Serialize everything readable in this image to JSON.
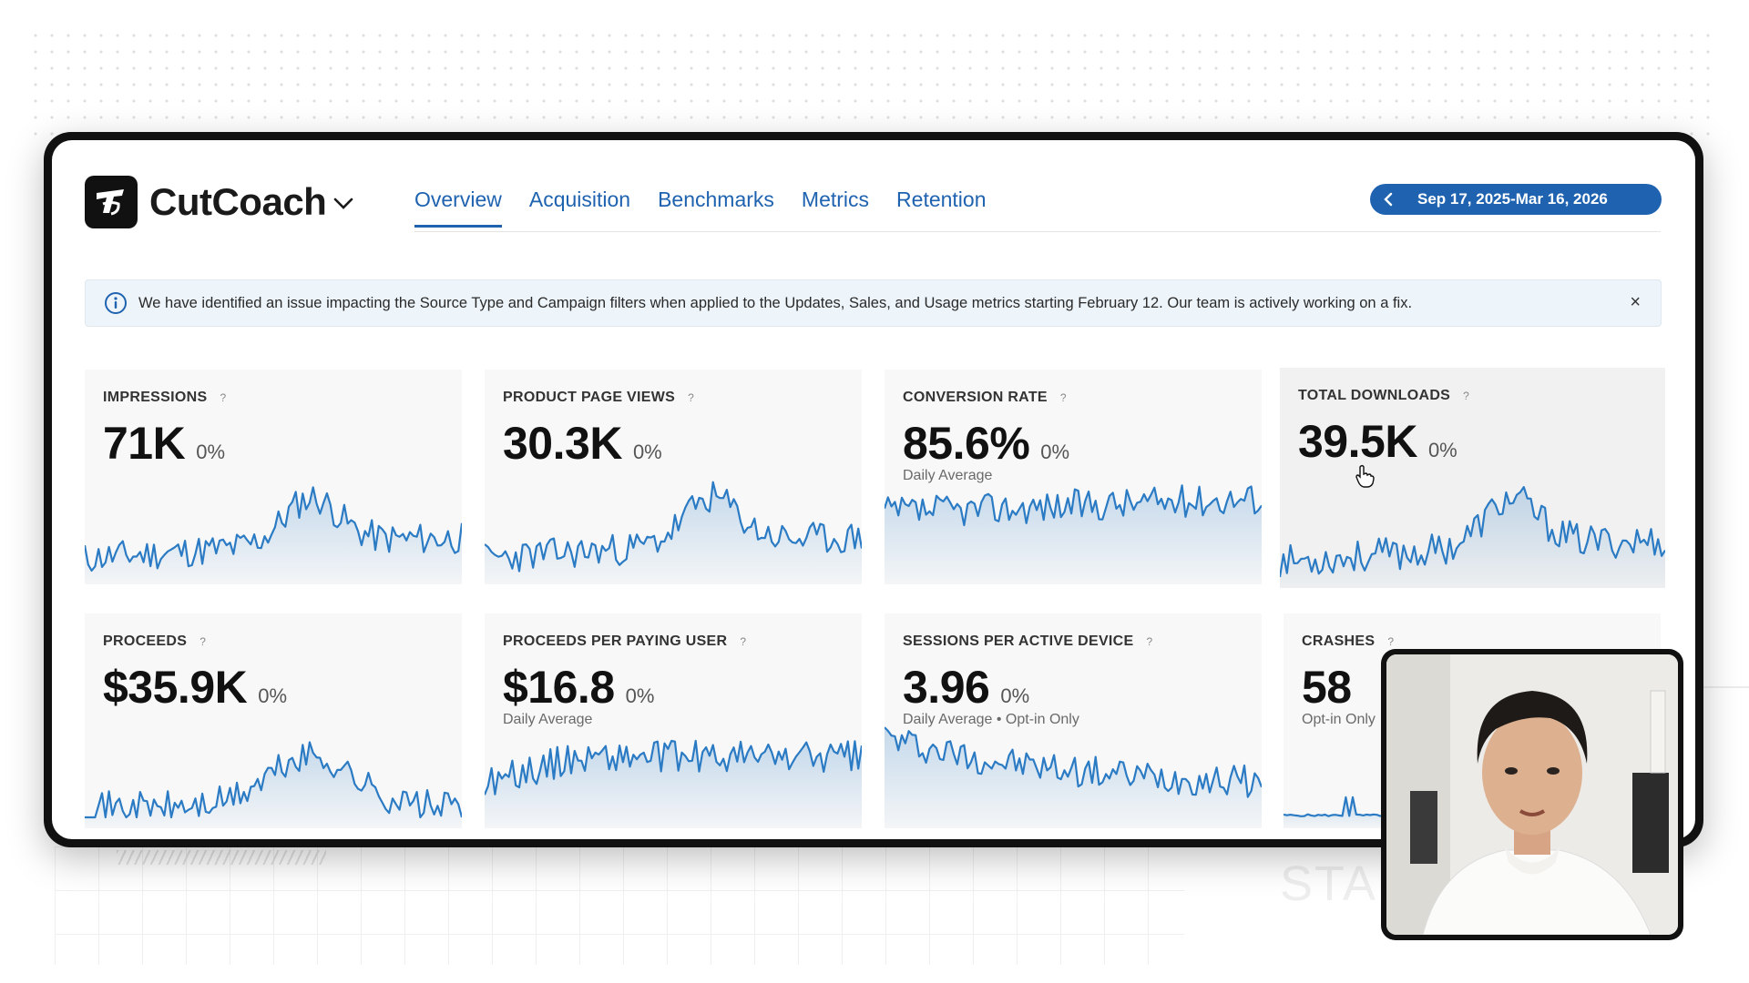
{
  "app": {
    "name": "CutCoach"
  },
  "tabs": [
    {
      "label": "Overview",
      "active": true
    },
    {
      "label": "Acquisition",
      "active": false
    },
    {
      "label": "Benchmarks",
      "active": false
    },
    {
      "label": "Metrics",
      "active": false
    },
    {
      "label": "Retention",
      "active": false
    }
  ],
  "date_range": {
    "label": "Sep 17, 2025-Mar 16, 2026"
  },
  "alert": {
    "text": "We have identified an issue impacting the Source Type and Campaign filters when applied to the Updates, Sales, and Usage metrics starting February 12. Our team is actively working on a fix.",
    "close_label": "×"
  },
  "metrics": [
    {
      "title": "IMPRESSIONS",
      "value": "71K",
      "delta": "0%",
      "sub": ""
    },
    {
      "title": "PRODUCT PAGE VIEWS",
      "value": "30.3K",
      "delta": "0%",
      "sub": ""
    },
    {
      "title": "CONVERSION RATE",
      "value": "85.6%",
      "delta": "0%",
      "sub": "Daily Average"
    },
    {
      "title": "TOTAL DOWNLOADS",
      "value": "39.5K",
      "delta": "0%",
      "sub": ""
    },
    {
      "title": "PROCEEDS",
      "value": "$35.9K",
      "delta": "0%",
      "sub": ""
    },
    {
      "title": "PROCEEDS PER PAYING USER",
      "value": "$16.8",
      "delta": "0%",
      "sub": "Daily Average"
    },
    {
      "title": "SESSIONS PER ACTIVE DEVICE",
      "value": "3.96",
      "delta": "0%",
      "sub": "Daily Average • Opt-in Only"
    },
    {
      "title": "CRASHES",
      "value": "58",
      "delta": "",
      "sub": "Opt-in Only"
    }
  ],
  "help_glyph": "?",
  "background": {
    "start_text": "STAR"
  },
  "colors": {
    "accent": "#1f63b0",
    "line": "#2b7bc4",
    "alert_bg": "#edf4fa",
    "negative": "#d11a2a"
  }
}
